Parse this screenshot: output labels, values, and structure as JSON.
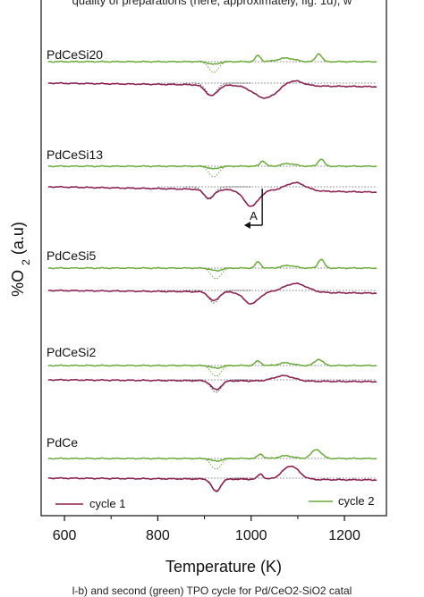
{
  "captions": {
    "top": "quality of preparations (here, approximately, fig. 1d), w",
    "bottom": "l-b) and second (green) TPO cycle for Pd/CeO2-SiO2 catal"
  },
  "colors": {
    "cycle1": "#8b2252",
    "cycle2": "#6aaa3a",
    "reference": "#555555",
    "axis": "#111111"
  },
  "chart_data": {
    "type": "line",
    "xlabel": "Temperature (K)",
    "ylabel": "%O2 (a.u)",
    "xlim": [
      550,
      1290
    ],
    "xticks": [
      600,
      800,
      1000,
      1200
    ],
    "y_ticks_shown": false,
    "legend": [
      {
        "name": "cycle 1",
        "color": "#8b2252",
        "position": "bottom-left"
      },
      {
        "name": "cycle 2",
        "color": "#6aaa3a",
        "position": "bottom-right"
      }
    ],
    "annotations": [
      {
        "text": "A",
        "near_x": 1010,
        "sample": "PdCeSi13"
      }
    ],
    "samples": [
      {
        "label": "PdCeSi20",
        "cycle2": {
          "baseline": 0,
          "features": [
            [
              920,
              -3,
              15
            ],
            [
              1015,
              7,
              8
            ],
            [
              1075,
              4,
              25
            ],
            [
              1145,
              9,
              9
            ]
          ]
        },
        "cycle1": {
          "baseline": 0,
          "features": [
            [
              915,
              -12,
              18
            ],
            [
              1030,
              -14,
              35
            ],
            [
              1090,
              6,
              28
            ]
          ]
        }
      },
      {
        "label": "PdCeSi13",
        "cycle2": {
          "baseline": 0,
          "features": [
            [
              920,
              -3,
              15
            ],
            [
              1025,
              6,
              8
            ],
            [
              1080,
              3,
              20
            ],
            [
              1150,
              8,
              9
            ]
          ]
        },
        "cycle1": {
          "baseline": 0,
          "features": [
            [
              910,
              -10,
              15
            ],
            [
              1000,
              -18,
              22
            ],
            [
              1095,
              9,
              30
            ]
          ]
        }
      },
      {
        "label": "PdCeSi5",
        "cycle2": {
          "baseline": 0,
          "features": [
            [
              925,
              -3,
              15
            ],
            [
              1015,
              7,
              8
            ],
            [
              1080,
              3,
              20
            ],
            [
              1150,
              10,
              9
            ]
          ]
        },
        "cycle1": {
          "baseline": 0,
          "features": [
            [
              920,
              -10,
              15
            ],
            [
              1000,
              -13,
              22
            ],
            [
              1095,
              10,
              35
            ]
          ]
        }
      },
      {
        "label": "PdCeSi2",
        "cycle2": {
          "baseline": 0,
          "features": [
            [
              925,
              -3,
              15
            ],
            [
              1015,
              5,
              9
            ],
            [
              1075,
              3,
              20
            ],
            [
              1145,
              7,
              12
            ]
          ]
        },
        "cycle1": {
          "baseline": 0,
          "features": [
            [
              925,
              -10,
              15
            ],
            [
              1070,
              6,
              30
            ]
          ]
        }
      },
      {
        "label": "PdCe",
        "cycle2": {
          "baseline": 0,
          "features": [
            [
              925,
              -3,
              15
            ],
            [
              1020,
              5,
              8
            ],
            [
              1075,
              3,
              20
            ],
            [
              1140,
              10,
              15
            ]
          ]
        },
        "cycle1": {
          "baseline": 0,
          "features": [
            [
              925,
              -14,
              13
            ],
            [
              1020,
              6,
              8
            ],
            [
              1085,
              15,
              25
            ]
          ]
        }
      }
    ]
  }
}
